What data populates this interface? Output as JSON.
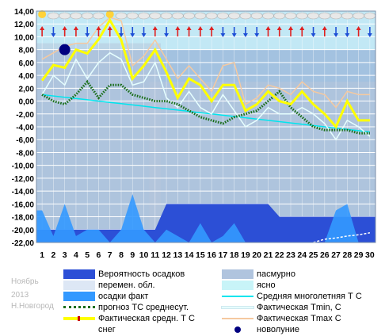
{
  "meta": {
    "month": "Ноябрь",
    "year": "2013",
    "city": "Н.Новгород"
  },
  "chart_data": {
    "type": "line",
    "ylim": [
      -22,
      14
    ],
    "y_ticks": [
      "14,00",
      "12,00",
      "10,00",
      "8,00",
      "6,00",
      "4,00",
      "2,00",
      "0,00",
      "-2,00",
      "-4,00",
      "-6,00",
      "-8,00",
      "-10,00",
      "-12,00",
      "-14,00",
      "-16,00",
      "-18,00",
      "-20,00",
      "-22,00"
    ],
    "x": [
      1,
      2,
      3,
      4,
      5,
      6,
      7,
      8,
      9,
      10,
      11,
      12,
      13,
      14,
      15,
      16,
      17,
      18,
      19,
      20,
      21,
      22,
      23,
      24,
      25,
      26,
      27,
      28,
      29,
      30
    ],
    "series": [
      {
        "name": "Фактическая средн. Т С",
        "values": [
          3.2,
          5.6,
          5.2,
          8.0,
          7.4,
          9.6,
          12.6,
          9.5,
          3.5,
          5.5,
          8.0,
          4.5,
          0.5,
          3.5,
          2.5,
          0.0,
          2.5,
          2.5,
          -1.5,
          -0.5,
          1.5,
          0.0,
          -0.5,
          1.5,
          -0.5,
          -2.0,
          -4.0,
          0.0,
          -3.0,
          -3.0
        ]
      },
      {
        "name": "Фактическая Tmin, C",
        "values": [
          1.0,
          4.0,
          2.5,
          6.5,
          3.5,
          6.0,
          7.5,
          6.5,
          2.5,
          3.0,
          6.0,
          0.5,
          -1.0,
          1.5,
          -1.0,
          -2.0,
          1.0,
          -1.5,
          -4.0,
          -3.0,
          -1.0,
          -2.0,
          -2.0,
          -1.0,
          -2.0,
          -3.5,
          -6.0,
          -3.0,
          -4.0,
          -5.5
        ]
      },
      {
        "name": "Фактическая Tmax C",
        "values": [
          6.5,
          7.5,
          8.5,
          9.0,
          9.0,
          11.5,
          13.0,
          12.5,
          5.5,
          7.0,
          9.5,
          6.5,
          3.5,
          5.5,
          3.5,
          1.5,
          5.5,
          6.0,
          -0.5,
          0.5,
          2.5,
          2.0,
          1.0,
          3.0,
          1.5,
          1.0,
          -1.0,
          1.5,
          1.0,
          1.0
        ]
      },
      {
        "name": "прогноз ТС среднесут.",
        "values": [
          1.0,
          0.0,
          -0.5,
          1.0,
          3.0,
          0.5,
          2.5,
          2.5,
          1.0,
          0.5,
          0.0,
          0.0,
          -0.5,
          -1.5,
          -2.5,
          -3.0,
          -3.5,
          -2.5,
          -2.0,
          -1.5,
          0.0,
          1.5,
          -1.0,
          -2.5,
          -4.0,
          -4.5,
          -4.5,
          -4.5,
          -5.0,
          -5.0
        ]
      },
      {
        "name": "Средняя многолетняя Т С",
        "values": [
          1.0,
          0.8,
          0.6,
          0.4,
          0.2,
          0.0,
          -0.2,
          -0.4,
          -0.6,
          -0.8,
          -1.0,
          -1.2,
          -1.4,
          -1.6,
          -1.8,
          -2.0,
          -2.2,
          -2.4,
          -2.6,
          -2.8,
          -3.0,
          -3.2,
          -3.4,
          -3.6,
          -3.8,
          -4.0,
          -4.2,
          -4.4,
          -4.6,
          -4.8
        ]
      },
      {
        "name": "Вероятность осадков",
        "values": [
          -20,
          -20,
          -20,
          -20,
          -20,
          -20,
          -20,
          -20,
          -20,
          -20,
          -20,
          -16,
          -16,
          -16,
          -16,
          -16,
          -16,
          -16,
          -16,
          -16,
          -16,
          -18,
          -18,
          -18,
          -18,
          -18,
          -18,
          -18,
          -18,
          -18
        ]
      },
      {
        "name": "осадки факт",
        "values": [
          -17,
          -21,
          -16,
          -21,
          -20,
          -20,
          -22,
          -20,
          -14.5,
          -20,
          -22,
          -20,
          -21,
          -22,
          -19,
          -22,
          -21,
          -19,
          -22,
          -22,
          -22,
          -22,
          -22,
          -22,
          -22,
          -22,
          -17,
          -16,
          -22,
          -22
        ]
      },
      {
        "name": "снег",
        "values": [
          null,
          null,
          null,
          null,
          null,
          null,
          null,
          null,
          null,
          null,
          null,
          null,
          null,
          null,
          null,
          null,
          null,
          null,
          null,
          null,
          null,
          null,
          null,
          null,
          -22,
          -21.5,
          -21.3,
          -21,
          -20.8,
          -20.5
        ]
      }
    ],
    "cloud_band": [
      {
        "from": 1,
        "to": 11,
        "level": 9
      },
      {
        "from": 11,
        "to": 30,
        "level": 3
      }
    ],
    "new_moon": {
      "x": 3,
      "y": 8.0
    },
    "sky_icons": [
      "sun",
      "cloud",
      "cloud",
      "cloud",
      "cloud",
      "cloud",
      "sun",
      "cloud",
      "cloud",
      "cloud",
      "cloud",
      "cloud",
      "cloud",
      "cloud",
      "cloud",
      "cloud",
      "cloud",
      "cloud",
      "cloud",
      "cloud",
      "cloud",
      "cloud",
      "cloud",
      "cloud",
      "cloud",
      "cloud",
      "cloud",
      "cloud",
      "cloud",
      "cloud"
    ],
    "wind_icons": [
      "up",
      "down",
      "up",
      "up",
      "down",
      "up",
      "up",
      "down",
      "down",
      "down",
      "up",
      "down",
      "up",
      "up",
      "up",
      "up",
      "down",
      "down",
      "down",
      "down",
      "up",
      "up",
      "up",
      "up",
      "down",
      "up",
      "down",
      "down",
      "up",
      "down"
    ]
  },
  "legend": {
    "items": [
      {
        "label": "Вероятность осадков",
        "color": "#2c4fd6",
        "kind": "fill"
      },
      {
        "label": "пасмурно",
        "color": "#b0c4de",
        "kind": "fill"
      },
      {
        "label": "перемен. обл.",
        "color": "#dde7f5",
        "kind": "fill"
      },
      {
        "label": "ясно",
        "color": "#c8f4f8",
        "kind": "fill"
      },
      {
        "label": "осадки факт",
        "color": "#3399ff",
        "kind": "fill"
      },
      {
        "label": "Средняя многолетняя Т С",
        "color": "#00e5ee",
        "kind": "line"
      },
      {
        "label": "прогноз ТС среднесут.",
        "color": "#1a6e1a",
        "kind": "dots"
      },
      {
        "label": "Фактическая Tmin, C",
        "color": "#e6ffff",
        "kind": "line"
      },
      {
        "label": "Фактическая средн. Т С",
        "color": "#ffff00",
        "kind": "thick"
      },
      {
        "label": "Фактическая Tmax С",
        "color": "#f5c9a0",
        "kind": "line"
      },
      {
        "label": "снег",
        "color": "#ffffff",
        "kind": "snow"
      },
      {
        "label": "новолуние",
        "color": "#000080",
        "kind": "moon"
      }
    ]
  },
  "colors": {
    "plot_bg": "#a3c2e0",
    "upper_bg": "#c2e8f5",
    "grid": "#ffffff",
    "cloud_band": "#b8c7db",
    "precip_prob": "#2c4fd6",
    "precip_fact": "#3399ff",
    "mean_line": "#ffff00",
    "tmin_line": "#e6ffff",
    "tmax_line": "#f5c9a0",
    "forecast_line": "#1a6e1a",
    "climate_line": "#00e5ee",
    "moon": "#000080"
  }
}
